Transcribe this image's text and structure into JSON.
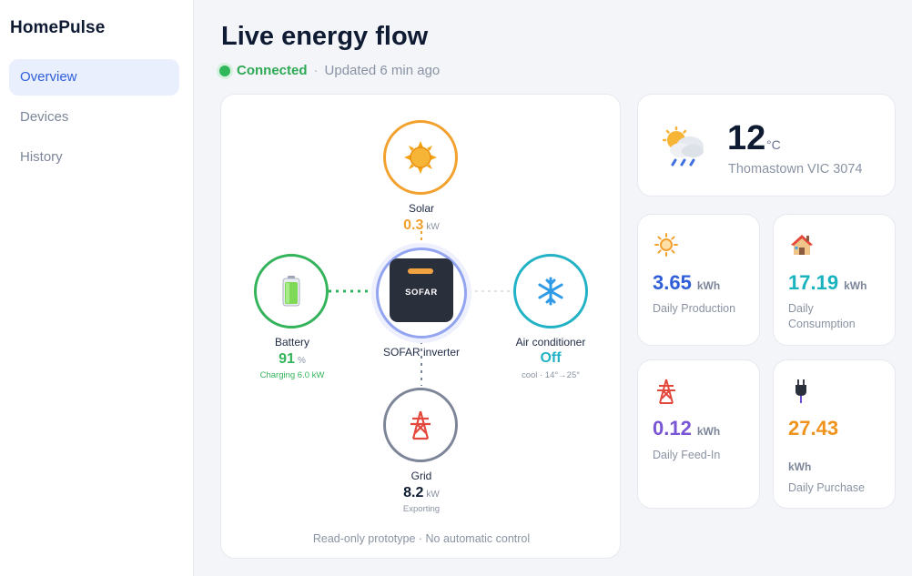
{
  "app": {
    "name": "HomePulse"
  },
  "sidebar": {
    "items": [
      {
        "label": "Overview"
      },
      {
        "label": "Devices"
      },
      {
        "label": "History"
      }
    ]
  },
  "header": {
    "title": "Live energy flow",
    "status": "Connected",
    "separator": "·",
    "updated": "Updated 6 min ago"
  },
  "flow": {
    "solar": {
      "label": "Solar",
      "value": "0.3",
      "unit": "kW"
    },
    "battery": {
      "label": "Battery",
      "value": "91",
      "unit": "%",
      "sub": "Charging 6.0 kW"
    },
    "inverter": {
      "label": "SOFAR inverter",
      "brand": "SOFAR"
    },
    "ac": {
      "label": "Air conditioner",
      "value": "Off",
      "sub": "cool · 14°→25°"
    },
    "grid": {
      "label": "Grid",
      "value": "8.2",
      "unit": "kW",
      "sub": "Exporting"
    },
    "footer": "Read-only prototype · No automatic control"
  },
  "weather": {
    "temperature": "12",
    "unit": "°C",
    "location": "Thomastown VIC 3074",
    "icon": "rain-cloud-sun-icon"
  },
  "stats": {
    "production": {
      "value": "3.65",
      "unit": "kWh",
      "label": "Daily Production",
      "icon": "sun-icon"
    },
    "consumption": {
      "value": "17.19",
      "unit": "kWh",
      "label": "Daily Consumption",
      "icon": "house-icon"
    },
    "feedin": {
      "value": "0.12",
      "unit": "kWh",
      "label": "Daily Feed-In",
      "icon": "pylon-icon"
    },
    "purchase": {
      "value": "27.43",
      "unit": "kWh",
      "label": "Daily Purchase",
      "icon": "plug-icon"
    }
  },
  "colors": {
    "solar": "#f2a12e",
    "battery": "#33b35a",
    "inverter": "#93a4f1",
    "ac": "#22b2c5",
    "grid": "#7d8598",
    "production": "#2f5fd8",
    "consumption": "#19b3c0",
    "feedin": "#7a55d6",
    "purchase": "#f0931c"
  }
}
